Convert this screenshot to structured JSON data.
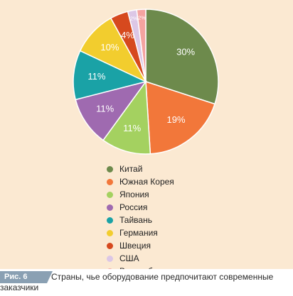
{
  "chart_data": {
    "type": "pie",
    "title": "",
    "legend_position": "bottom",
    "slices": [
      {
        "label": "Китай",
        "value": 30,
        "value_label": "30%",
        "color": "#6d8a4c"
      },
      {
        "label": "Южная Корея",
        "value": 19,
        "value_label": "19%",
        "color": "#f2773a"
      },
      {
        "label": "Япония",
        "value": 11,
        "value_label": "11%",
        "color": "#a4d160"
      },
      {
        "label": "Россия",
        "value": 11,
        "value_label": "11%",
        "color": "#9f6ab0"
      },
      {
        "label": "Тайвань",
        "value": 11,
        "value_label": "11%",
        "color": "#1aa2a6"
      },
      {
        "label": "Германия",
        "value": 10,
        "value_label": "10%",
        "color": "#f2cd2e"
      },
      {
        "label": "Швеция",
        "value": 4,
        "value_label": "4%",
        "color": "#d6491e"
      },
      {
        "label": "США",
        "value": 2,
        "value_label": "2%",
        "color": "#dcc7e6"
      },
      {
        "label": "Великобритания",
        "value": 2,
        "value_label": "2%",
        "color": "#f4a3a0"
      }
    ]
  },
  "caption": {
    "figure_label": "Рис. 6",
    "text_line1": "Страны, чье оборудование предпочитают современные",
    "text_line2": "заказчики"
  }
}
